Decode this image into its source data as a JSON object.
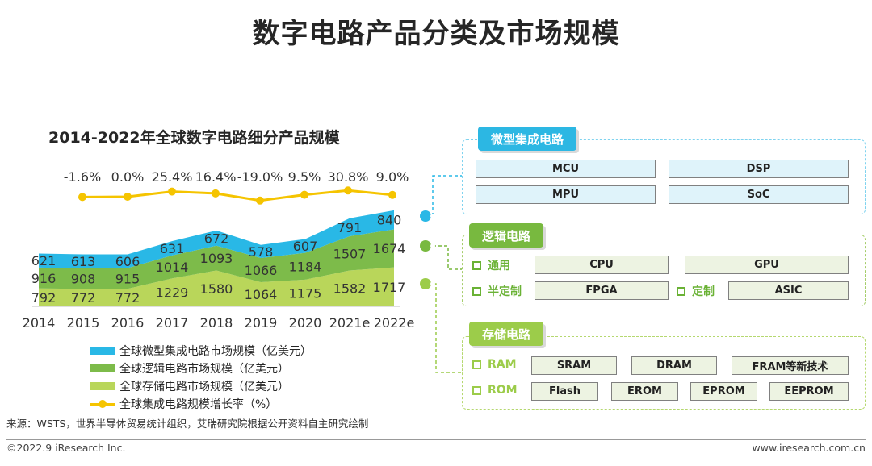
{
  "page_title": "数字电路产品分类及市场规模",
  "chart_title": "2014-2022年全球数字电路细分产品规模",
  "chart_data": {
    "type": "area",
    "title": "2014-2022年全球数字电路细分产品规模",
    "categories": [
      "2014",
      "2015",
      "2016",
      "2017",
      "2018",
      "2019",
      "2020",
      "2021e",
      "2022e"
    ],
    "stacked": true,
    "series": [
      {
        "name": "全球存储电路市场规模（亿美元）",
        "color": "#b9d65a",
        "values": [
          792,
          772,
          772,
          1229,
          1580,
          1064,
          1175,
          1582,
          1717
        ]
      },
      {
        "name": "全球逻辑电路市场规模（亿美元）",
        "color": "#7dbb4a",
        "values": [
          916,
          908,
          915,
          1014,
          1093,
          1066,
          1184,
          1507,
          1674
        ]
      },
      {
        "name": "全球微型集成电路市场规模（亿美元）",
        "color": "#29b8e6",
        "values": [
          621,
          613,
          606,
          631,
          672,
          578,
          607,
          791,
          840
        ]
      }
    ],
    "growth_series": {
      "name": "全球集成电路规模增长率（%）",
      "color": "#f5c400",
      "values": [
        -1.6,
        0.0,
        25.4,
        16.4,
        -19.0,
        9.5,
        30.8,
        9.0
      ],
      "labels": [
        "-1.6%",
        "0.0%",
        "25.4%",
        "16.4%",
        "-19.0%",
        "9.5%",
        "30.8%",
        "9.0%"
      ]
    },
    "legend_position": "bottom",
    "grid": false
  },
  "legend": [
    {
      "label": "全球微型集成电路市场规模（亿美元）",
      "color": "#29b8e6"
    },
    {
      "label": "全球逻辑电路市场规模（亿美元）",
      "color": "#7dbb4a"
    },
    {
      "label": "全球存储电路市场规模（亿美元）",
      "color": "#b9d65a"
    },
    {
      "label": "全球集成电路规模增长率（%）",
      "color": "#f5c400"
    }
  ],
  "groups": {
    "micro": {
      "title": "微型集成电路",
      "items": [
        "MCU",
        "DSP",
        "MPU",
        "SoC"
      ]
    },
    "logic": {
      "title": "逻辑电路",
      "general_label": "通用",
      "general_items": [
        "CPU",
        "GPU"
      ],
      "semi_label": "半定制",
      "semi_items": [
        "FPGA"
      ],
      "custom_label": "定制",
      "custom_items": [
        "ASIC"
      ]
    },
    "storage": {
      "title": "存储电路",
      "ram_label": "RAM",
      "ram_items": [
        "SRAM",
        "DRAM",
        "FRAM等新技术"
      ],
      "rom_label": "ROM",
      "rom_items": [
        "Flash",
        "EROM",
        "EPROM",
        "EEPROM"
      ]
    }
  },
  "source": "来源：WSTS，世界半导体贸易统计组织，艾瑞研究院根据公开资料自主研究绘制",
  "footer": {
    "left": "©2022.9 iResearch Inc.",
    "right": "www.iresearch.com.cn"
  }
}
